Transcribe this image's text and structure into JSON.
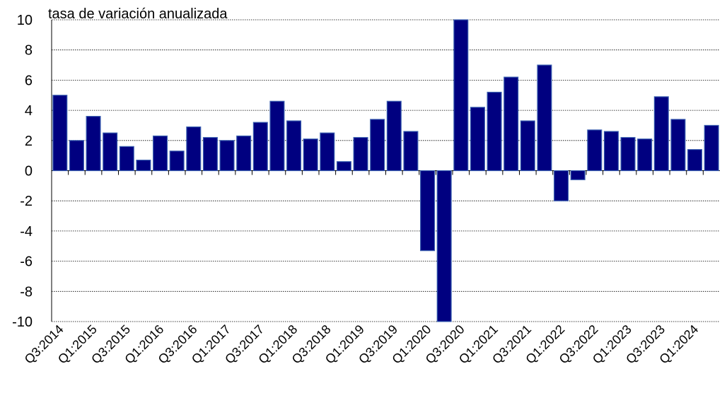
{
  "chart_data": {
    "type": "bar",
    "title": "tasa de variación anualizada",
    "categories": [
      "Q3:2014",
      null,
      "Q1:2015",
      null,
      "Q3:2015",
      null,
      "Q1:2016",
      null,
      "Q3:2016",
      null,
      "Q1:2017",
      null,
      "Q3:2017",
      null,
      "Q1:2018",
      null,
      "Q3:2018",
      null,
      "Q1:2019",
      null,
      "Q3:2019",
      null,
      "Q1:2020",
      null,
      "Q3:2020",
      null,
      "Q1:2021",
      null,
      "Q3:2021",
      null,
      "Q1:2022",
      null,
      "Q3:2022",
      null,
      "Q1:2023",
      null,
      "Q3:2023",
      null,
      "Q1:2024",
      null
    ],
    "values": [
      5.0,
      2.0,
      3.6,
      2.5,
      1.6,
      0.7,
      2.3,
      1.3,
      2.9,
      2.2,
      2.0,
      2.3,
      3.2,
      4.6,
      3.3,
      2.1,
      2.5,
      0.6,
      2.2,
      3.4,
      4.6,
      2.6,
      -5.3,
      -10,
      10,
      4.2,
      5.2,
      6.2,
      3.3,
      7.0,
      -2.0,
      -0.6,
      2.7,
      2.6,
      2.2,
      2.1,
      4.9,
      3.4,
      1.4,
      3.0
    ],
    "color": "#000080",
    "ylim": [
      -10,
      10
    ],
    "yticks": [
      -10,
      -8,
      -6,
      -4,
      -2,
      0,
      2,
      4,
      6,
      8,
      10
    ],
    "grid": true
  }
}
